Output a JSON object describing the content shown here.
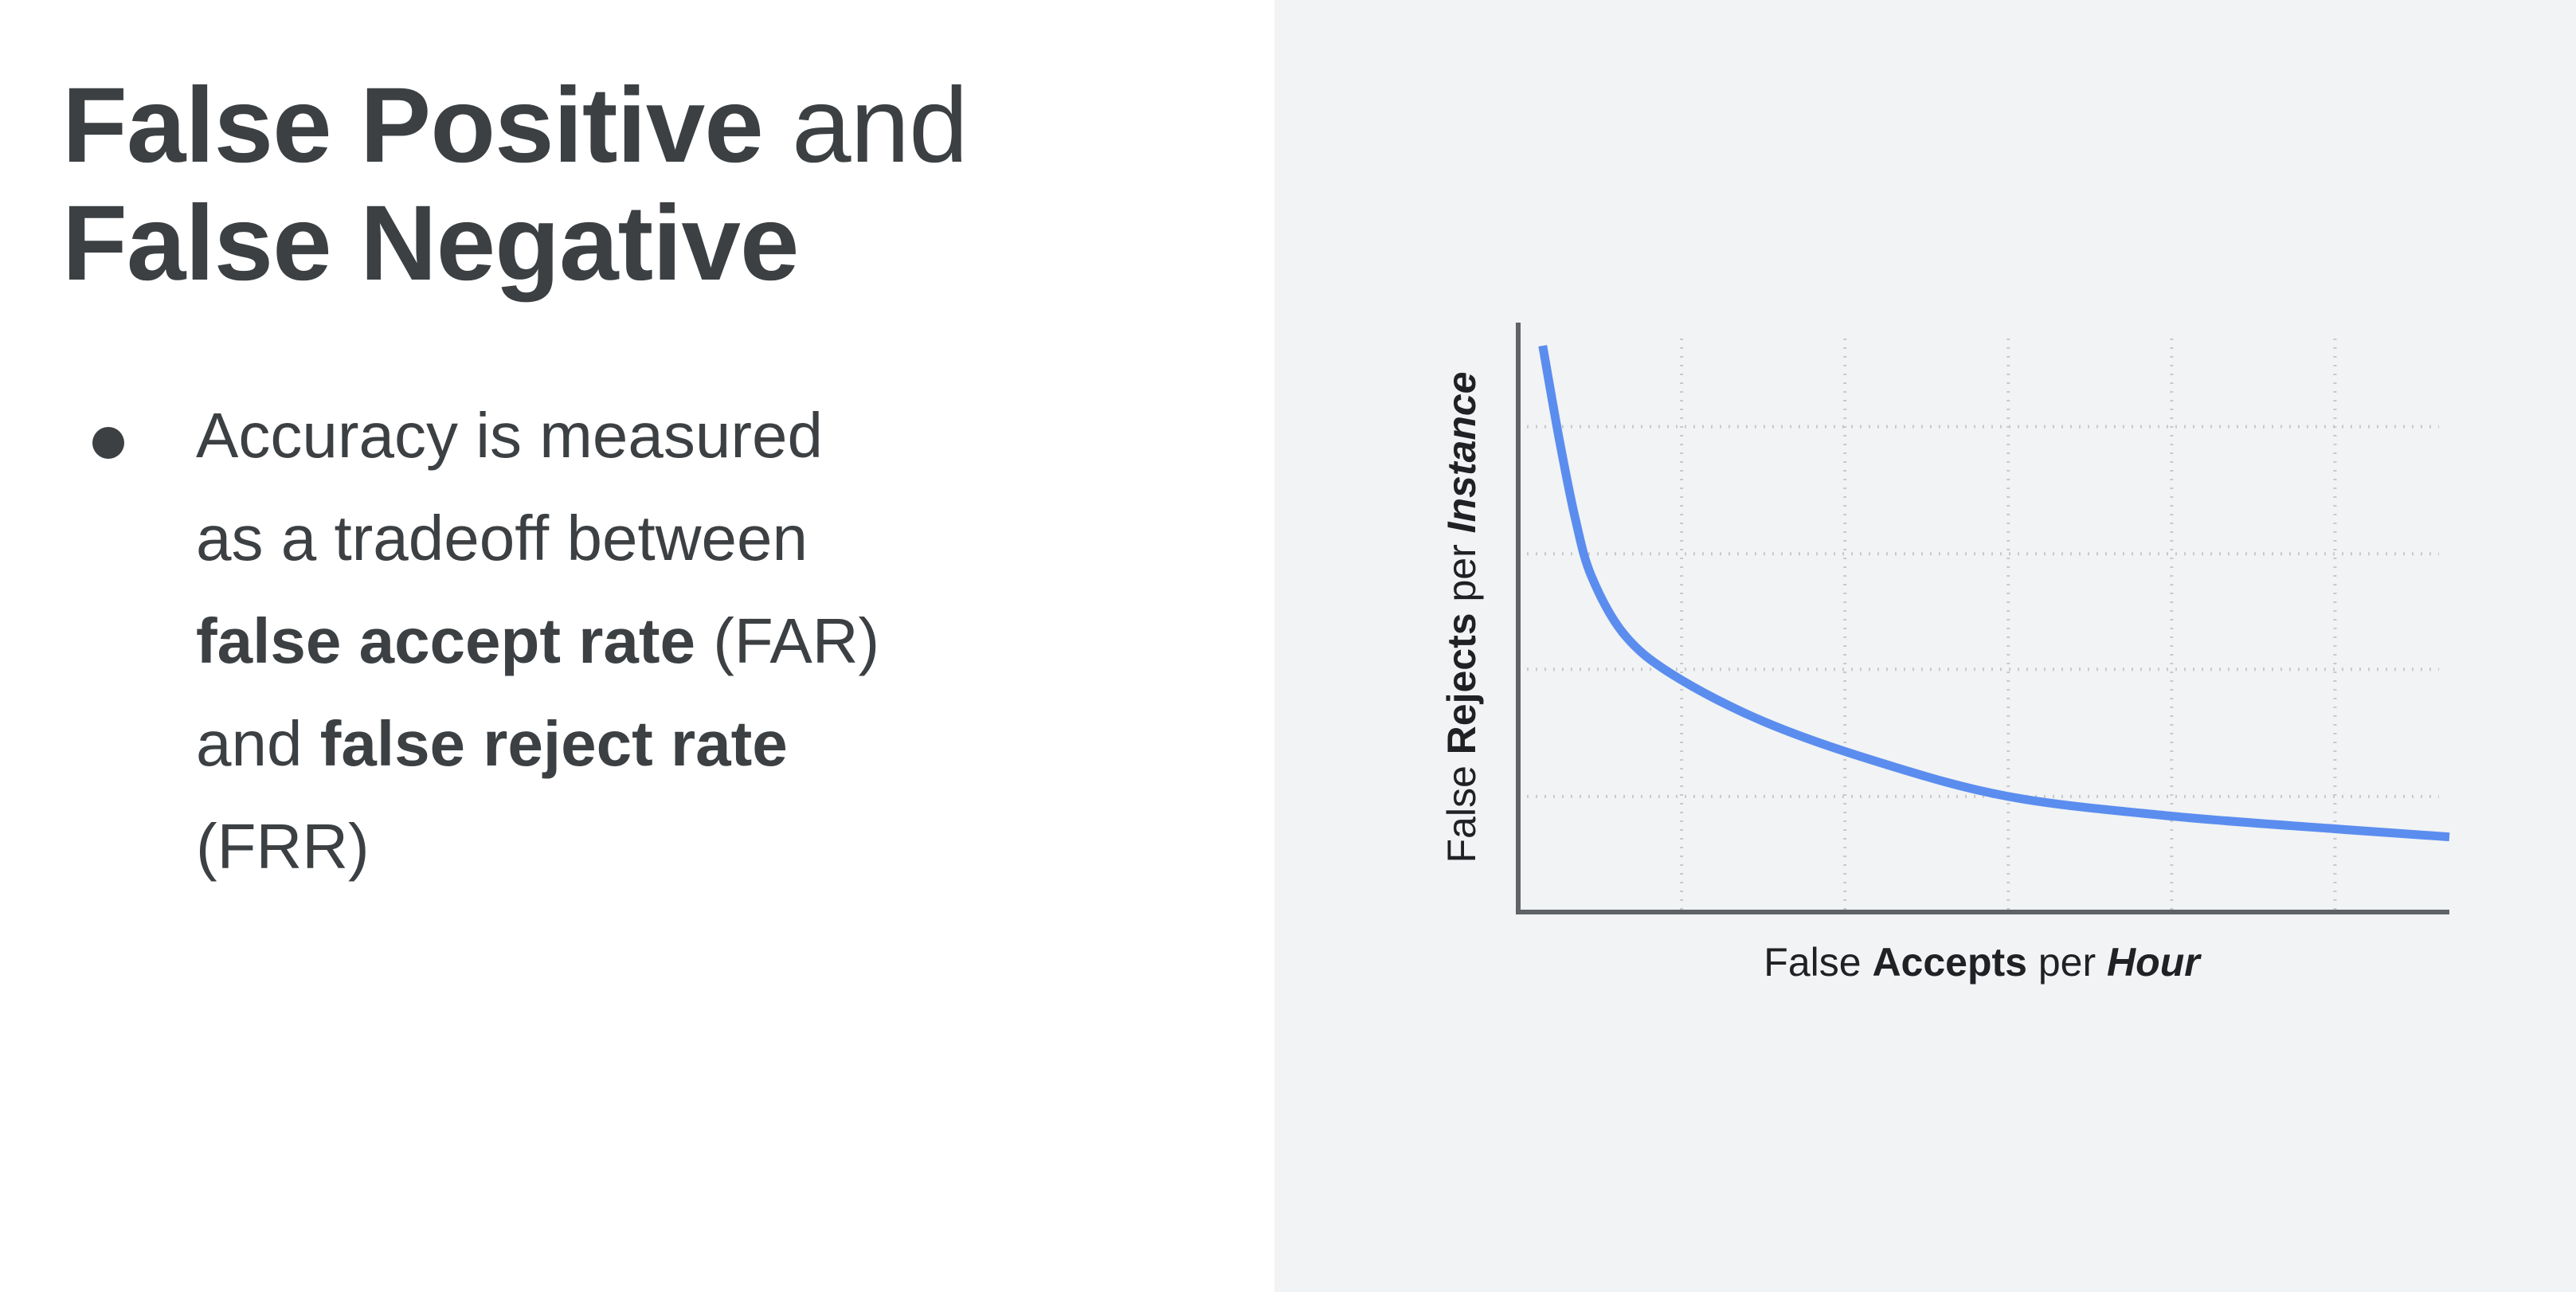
{
  "slide": {
    "title": {
      "line1_bold": "False Positive",
      "line1_regular": " and",
      "line2_bold": "False Negative"
    },
    "bullets": [
      {
        "parts": [
          {
            "text": "Accuracy is measured as a tradeoff between ",
            "bold": false
          },
          {
            "text": "false accept rate",
            "bold": true
          },
          {
            "text": " (FAR) and ",
            "bold": false
          },
          {
            "text": "false reject rate",
            "bold": true
          },
          {
            "text": " (FRR)",
            "bold": false
          }
        ]
      }
    ]
  },
  "colors": {
    "left_background": "#ffffff",
    "right_background": "#f1f3f4",
    "text": "#3c4043",
    "curve": "#5b8def",
    "axis": "#5f6368",
    "grid": "#c7c9cc"
  },
  "chart_data": {
    "type": "line",
    "title": "",
    "xlabel": {
      "parts": [
        {
          "text": "False ",
          "bold": false,
          "italic": false
        },
        {
          "text": "Accepts",
          "bold": true,
          "italic": false
        },
        {
          "text": " per ",
          "bold": false,
          "italic": false
        },
        {
          "text": "Hour",
          "bold": true,
          "italic": true
        }
      ]
    },
    "ylabel": {
      "parts": [
        {
          "text": "False ",
          "bold": false,
          "italic": false
        },
        {
          "text": "Rejects",
          "bold": true,
          "italic": false
        },
        {
          "text": " per ",
          "bold": false,
          "italic": false
        },
        {
          "text": "Instance",
          "bold": true,
          "italic": true
        }
      ]
    },
    "grid": true,
    "tick_labels_shown": false,
    "x_range": [
      0,
      5.7
    ],
    "y_range": [
      0,
      5.1
    ],
    "vertical_gridlines_at": [
      1,
      2,
      3,
      4,
      5
    ],
    "horizontal_gridlines_at": [
      1,
      2.1,
      3.1,
      4.2
    ],
    "series": [
      {
        "color": "#5b8def",
        "x": [
          0.15,
          0.25,
          0.35,
          0.45,
          0.65,
          0.95,
          1.5,
          2.2,
          3,
          4,
          5,
          5.7
        ],
        "y": [
          4.9,
          4.1,
          3.4,
          2.9,
          2.4,
          2.05,
          1.65,
          1.3,
          1.0,
          0.83,
          0.72,
          0.65
        ]
      }
    ]
  }
}
